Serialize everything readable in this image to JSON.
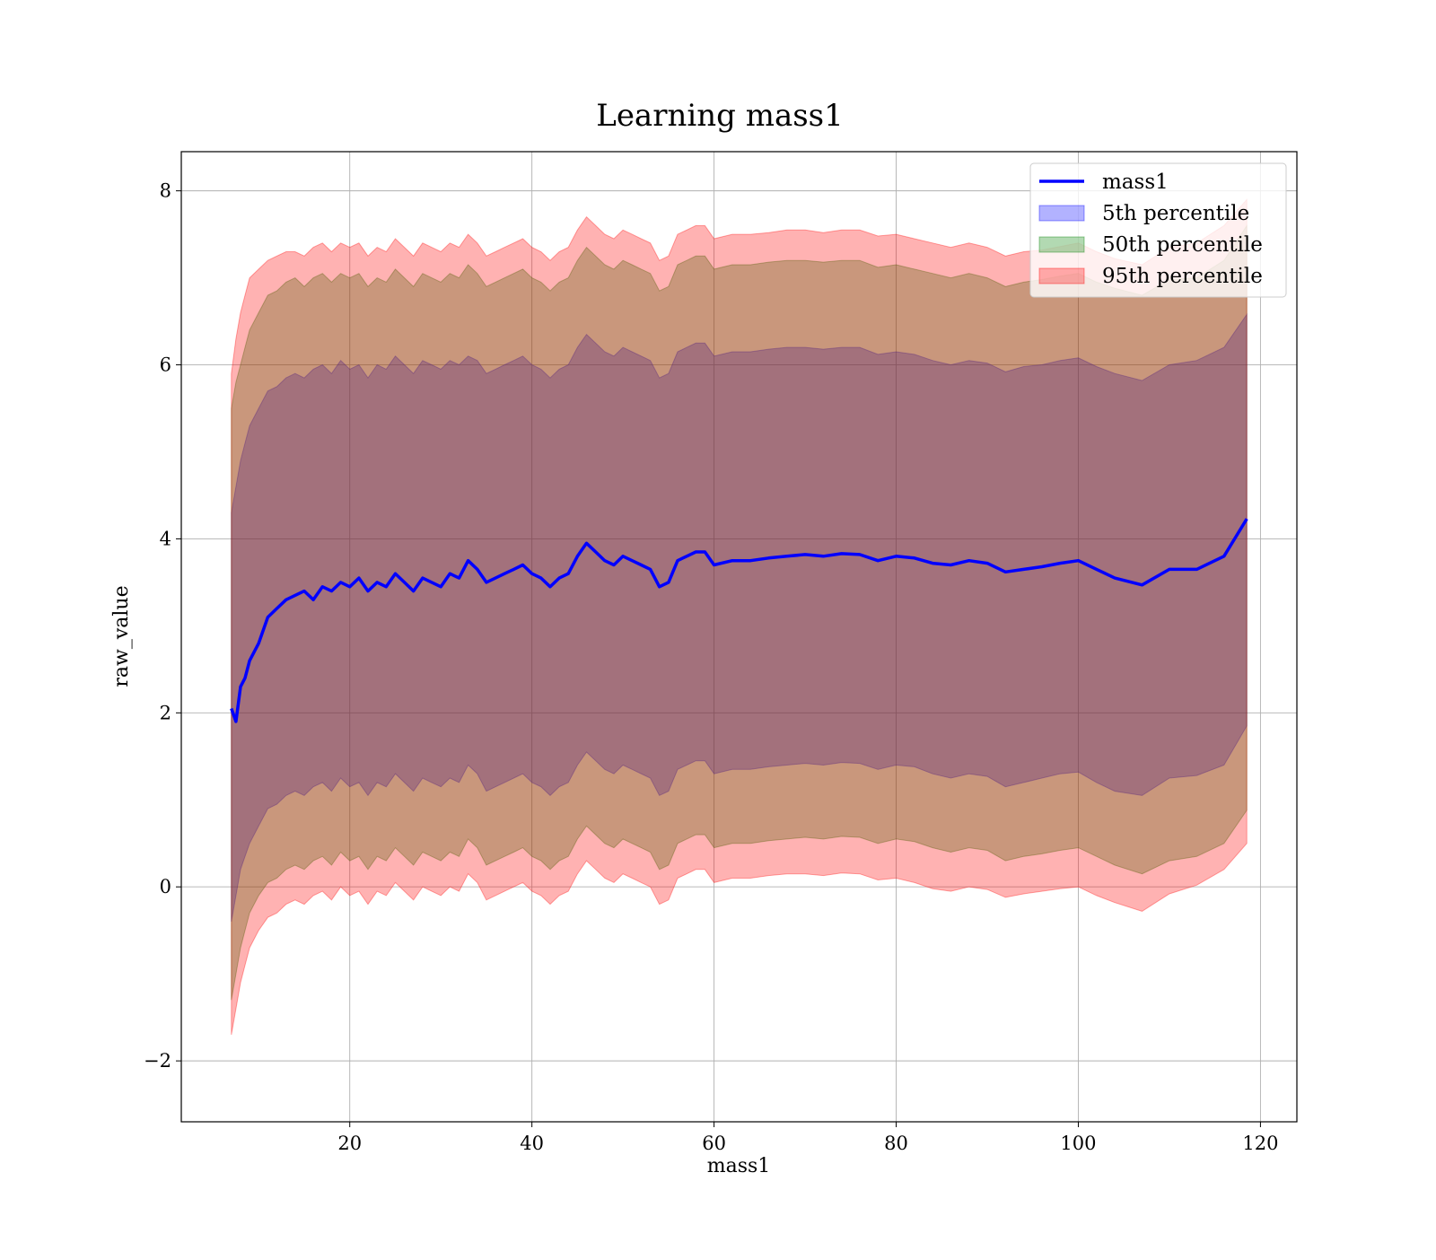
{
  "chart_data": {
    "type": "area",
    "title": "Learning mass1",
    "xlabel": "mass1",
    "ylabel": "raw_value",
    "xlim": [
      1.5,
      124
    ],
    "ylim": [
      -2.7,
      8.45
    ],
    "grid": true,
    "legend_position": "top-right",
    "x_ticks": [
      20,
      40,
      60,
      80,
      100,
      120
    ],
    "x_tick_labels": [
      "20",
      "40",
      "60",
      "80",
      "100",
      "120"
    ],
    "y_ticks": [
      -2,
      0,
      2,
      4,
      6,
      8
    ],
    "y_tick_labels": [
      "−2",
      "0",
      "2",
      "4",
      "6",
      "8"
    ],
    "colors": {
      "line": "#0000ff",
      "band_5th": "#0000ff",
      "band_50th": "#008000",
      "band_95th": "#ff0000"
    },
    "legend": [
      {
        "label": "mass1",
        "kind": "line",
        "color": "#0000ff"
      },
      {
        "label": "5th percentile",
        "kind": "patch",
        "color": "#0000ff"
      },
      {
        "label": "50th percentile",
        "kind": "patch",
        "color": "#008000"
      },
      {
        "label": "95th percentile",
        "kind": "patch",
        "color": "#ff0000"
      }
    ],
    "x": [
      7,
      7.5,
      8,
      8.5,
      9,
      10,
      11,
      12,
      13,
      14,
      15,
      16,
      17,
      18,
      19,
      20,
      21,
      22,
      23,
      24,
      25,
      26,
      27,
      28,
      29,
      30,
      31,
      32,
      33,
      34,
      35,
      36,
      37,
      38,
      39,
      40,
      41,
      42,
      43,
      44,
      45,
      46,
      47,
      48,
      49,
      50,
      51,
      52,
      53,
      54,
      55,
      56,
      57,
      58,
      59,
      60,
      62,
      64,
      66,
      68,
      70,
      72,
      74,
      76,
      78,
      80,
      82,
      84,
      86,
      88,
      90,
      92,
      94,
      96,
      98,
      100,
      102,
      104,
      107,
      110,
      113,
      116,
      118.5
    ],
    "series": [
      {
        "name": "mass1",
        "values": [
          2.05,
          1.9,
          2.3,
          2.4,
          2.6,
          2.8,
          3.1,
          3.2,
          3.3,
          3.35,
          3.4,
          3.3,
          3.45,
          3.4,
          3.5,
          3.45,
          3.55,
          3.4,
          3.5,
          3.45,
          3.6,
          3.5,
          3.4,
          3.55,
          3.5,
          3.45,
          3.6,
          3.55,
          3.75,
          3.65,
          3.5,
          3.55,
          3.6,
          3.65,
          3.7,
          3.6,
          3.55,
          3.45,
          3.55,
          3.6,
          3.8,
          3.95,
          3.85,
          3.75,
          3.7,
          3.8,
          3.75,
          3.7,
          3.65,
          3.45,
          3.5,
          3.75,
          3.8,
          3.85,
          3.85,
          3.7,
          3.75,
          3.75,
          3.78,
          3.8,
          3.82,
          3.8,
          3.83,
          3.82,
          3.75,
          3.8,
          3.78,
          3.72,
          3.7,
          3.75,
          3.72,
          3.62,
          3.65,
          3.68,
          3.72,
          3.75,
          3.65,
          3.55,
          3.47,
          3.65,
          3.65,
          3.8,
          4.23
        ]
      },
      {
        "name": "5th percentile",
        "upper": [
          4.3,
          4.6,
          4.9,
          5.1,
          5.3,
          5.5,
          5.7,
          5.75,
          5.85,
          5.9,
          5.85,
          5.95,
          6.0,
          5.9,
          6.05,
          5.95,
          6.0,
          5.85,
          6.0,
          5.95,
          6.1,
          6.0,
          5.9,
          6.05,
          6.0,
          5.95,
          6.05,
          6.0,
          6.1,
          6.05,
          5.9,
          5.95,
          6.0,
          6.05,
          6.1,
          6.0,
          5.95,
          5.85,
          5.95,
          6.0,
          6.2,
          6.35,
          6.25,
          6.15,
          6.1,
          6.2,
          6.15,
          6.1,
          6.05,
          5.85,
          5.9,
          6.15,
          6.2,
          6.25,
          6.25,
          6.1,
          6.15,
          6.15,
          6.18,
          6.2,
          6.2,
          6.18,
          6.2,
          6.2,
          6.12,
          6.15,
          6.12,
          6.05,
          6.0,
          6.05,
          6.02,
          5.92,
          5.98,
          6.0,
          6.05,
          6.08,
          5.98,
          5.9,
          5.82,
          6.0,
          6.05,
          6.2,
          6.58
        ],
        "lower": [
          -0.4,
          -0.1,
          0.2,
          0.35,
          0.5,
          0.7,
          0.9,
          0.95,
          1.05,
          1.1,
          1.05,
          1.15,
          1.2,
          1.1,
          1.25,
          1.15,
          1.2,
          1.05,
          1.2,
          1.15,
          1.3,
          1.2,
          1.1,
          1.25,
          1.2,
          1.15,
          1.25,
          1.2,
          1.4,
          1.3,
          1.1,
          1.15,
          1.2,
          1.25,
          1.3,
          1.2,
          1.15,
          1.05,
          1.15,
          1.2,
          1.4,
          1.55,
          1.45,
          1.35,
          1.3,
          1.4,
          1.35,
          1.3,
          1.25,
          1.05,
          1.1,
          1.35,
          1.4,
          1.45,
          1.45,
          1.3,
          1.35,
          1.35,
          1.38,
          1.4,
          1.42,
          1.4,
          1.43,
          1.42,
          1.35,
          1.4,
          1.38,
          1.3,
          1.25,
          1.3,
          1.27,
          1.15,
          1.2,
          1.25,
          1.3,
          1.32,
          1.2,
          1.1,
          1.05,
          1.25,
          1.28,
          1.4,
          1.85
        ]
      },
      {
        "name": "50th percentile",
        "upper": [
          5.5,
          5.8,
          6.0,
          6.2,
          6.4,
          6.6,
          6.8,
          6.85,
          6.95,
          7.0,
          6.9,
          7.0,
          7.05,
          6.95,
          7.05,
          7.0,
          7.05,
          6.9,
          7.0,
          6.95,
          7.1,
          7.0,
          6.9,
          7.05,
          7.0,
          6.95,
          7.05,
          7.0,
          7.15,
          7.05,
          6.9,
          6.95,
          7.0,
          7.05,
          7.1,
          7.0,
          6.95,
          6.85,
          6.95,
          7.0,
          7.2,
          7.35,
          7.25,
          7.15,
          7.1,
          7.2,
          7.15,
          7.1,
          7.05,
          6.85,
          6.9,
          7.15,
          7.2,
          7.25,
          7.25,
          7.1,
          7.15,
          7.15,
          7.18,
          7.2,
          7.2,
          7.18,
          7.2,
          7.2,
          7.12,
          7.15,
          7.1,
          7.05,
          7.0,
          7.05,
          7.0,
          6.9,
          6.95,
          6.98,
          7.02,
          7.05,
          6.95,
          6.88,
          6.8,
          6.98,
          7.0,
          7.2,
          7.6
        ],
        "lower": [
          -1.3,
          -1.0,
          -0.7,
          -0.5,
          -0.3,
          -0.1,
          0.05,
          0.1,
          0.2,
          0.25,
          0.2,
          0.3,
          0.35,
          0.25,
          0.4,
          0.3,
          0.35,
          0.2,
          0.35,
          0.3,
          0.45,
          0.35,
          0.25,
          0.4,
          0.35,
          0.3,
          0.4,
          0.35,
          0.55,
          0.45,
          0.25,
          0.3,
          0.35,
          0.4,
          0.45,
          0.35,
          0.3,
          0.2,
          0.3,
          0.35,
          0.55,
          0.7,
          0.6,
          0.5,
          0.45,
          0.55,
          0.5,
          0.45,
          0.4,
          0.2,
          0.25,
          0.5,
          0.55,
          0.6,
          0.6,
          0.45,
          0.5,
          0.5,
          0.53,
          0.55,
          0.57,
          0.55,
          0.58,
          0.57,
          0.5,
          0.55,
          0.52,
          0.45,
          0.4,
          0.45,
          0.42,
          0.3,
          0.35,
          0.38,
          0.42,
          0.45,
          0.35,
          0.25,
          0.15,
          0.3,
          0.35,
          0.5,
          0.88
        ]
      },
      {
        "name": "95th percentile",
        "upper": [
          5.9,
          6.3,
          6.6,
          6.8,
          7.0,
          7.1,
          7.2,
          7.25,
          7.3,
          7.3,
          7.25,
          7.35,
          7.4,
          7.3,
          7.4,
          7.35,
          7.4,
          7.25,
          7.35,
          7.3,
          7.45,
          7.35,
          7.25,
          7.4,
          7.35,
          7.3,
          7.4,
          7.35,
          7.5,
          7.4,
          7.25,
          7.3,
          7.35,
          7.4,
          7.45,
          7.35,
          7.3,
          7.2,
          7.3,
          7.35,
          7.55,
          7.7,
          7.6,
          7.5,
          7.45,
          7.55,
          7.5,
          7.45,
          7.4,
          7.2,
          7.25,
          7.5,
          7.55,
          7.6,
          7.6,
          7.45,
          7.5,
          7.5,
          7.52,
          7.55,
          7.55,
          7.52,
          7.55,
          7.55,
          7.48,
          7.5,
          7.45,
          7.4,
          7.35,
          7.4,
          7.35,
          7.25,
          7.3,
          7.32,
          7.36,
          7.4,
          7.3,
          7.22,
          7.15,
          7.35,
          7.4,
          7.6,
          7.9
        ],
        "lower": [
          -1.7,
          -1.4,
          -1.1,
          -0.9,
          -0.7,
          -0.5,
          -0.35,
          -0.3,
          -0.2,
          -0.15,
          -0.2,
          -0.1,
          -0.05,
          -0.15,
          0.0,
          -0.1,
          -0.05,
          -0.2,
          -0.05,
          -0.1,
          0.05,
          -0.05,
          -0.15,
          0.0,
          -0.05,
          -0.1,
          0.0,
          -0.05,
          0.15,
          0.05,
          -0.15,
          -0.1,
          -0.05,
          0.0,
          0.05,
          -0.05,
          -0.1,
          -0.2,
          -0.1,
          -0.05,
          0.15,
          0.3,
          0.2,
          0.1,
          0.05,
          0.15,
          0.1,
          0.05,
          0.0,
          -0.2,
          -0.15,
          0.1,
          0.15,
          0.2,
          0.2,
          0.05,
          0.1,
          0.1,
          0.13,
          0.15,
          0.15,
          0.13,
          0.16,
          0.15,
          0.08,
          0.1,
          0.05,
          -0.02,
          -0.05,
          0.0,
          -0.03,
          -0.12,
          -0.08,
          -0.05,
          -0.02,
          0.0,
          -0.1,
          -0.18,
          -0.28,
          -0.08,
          0.02,
          0.2,
          0.5
        ]
      }
    ]
  }
}
